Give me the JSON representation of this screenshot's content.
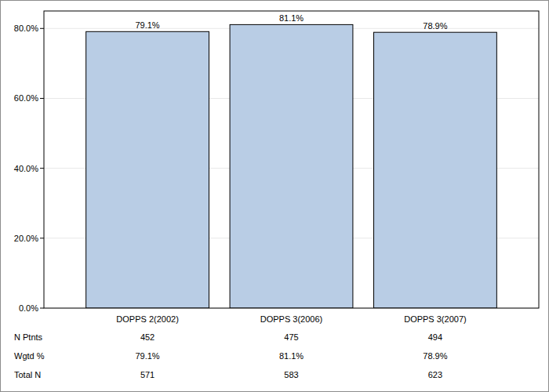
{
  "chart_data": {
    "type": "bar",
    "categories": [
      "DOPPS 2(2002)",
      "DOPPS 3(2006)",
      "DOPPS 3(2007)"
    ],
    "values": [
      79.1,
      81.1,
      78.9
    ],
    "value_labels": [
      "79.1%",
      "81.1%",
      "78.9%"
    ],
    "data_labels": true,
    "color": "#b9cde5",
    "ylim": [
      0,
      85
    ],
    "yticks": [
      {
        "value": 0,
        "label": "0.0%"
      },
      {
        "value": 20,
        "label": "20.0%"
      },
      {
        "value": 40,
        "label": "40.0%"
      },
      {
        "value": 60,
        "label": "60.0%"
      },
      {
        "value": 80,
        "label": "80.0%"
      }
    ],
    "grid": true
  },
  "table": {
    "rows": [
      {
        "label": "N Ptnts",
        "values": [
          452,
          475,
          494
        ]
      },
      {
        "label": "Wgtd %",
        "values": [
          "79.1%",
          "81.1%",
          "78.9%"
        ]
      },
      {
        "label": "Total N",
        "values": [
          571,
          583,
          623
        ]
      }
    ]
  }
}
